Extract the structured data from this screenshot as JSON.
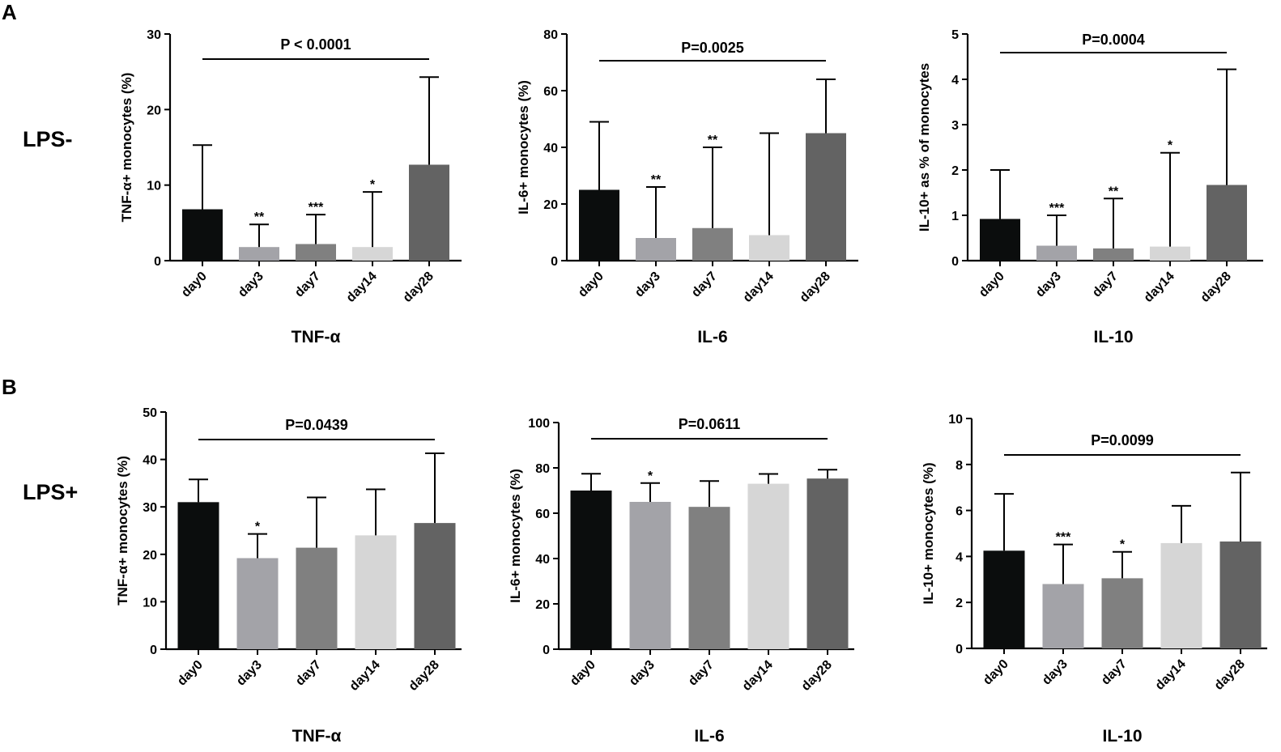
{
  "panels": {
    "A": {
      "letter": "A",
      "row_label": "LPS-"
    },
    "B": {
      "letter": "B",
      "row_label": "LPS+"
    }
  },
  "bar_colors": [
    "#0b0d0d",
    "#a3a3a8",
    "#808080",
    "#d6d6d6",
    "#636363"
  ],
  "chart_data": [
    {
      "id": "A-tnf",
      "type": "bar",
      "title": "TNF-α",
      "panel": "A",
      "ylabel": "TNF-α+ monocytes (%)",
      "categories": [
        "day0",
        "day3",
        "day7",
        "day14",
        "day28"
      ],
      "values": [
        6.8,
        1.8,
        2.2,
        1.8,
        12.7
      ],
      "error_upper": [
        15.3,
        4.8,
        6.1,
        9.1,
        24.3
      ],
      "significance": [
        "",
        "**",
        "***",
        "*",
        ""
      ],
      "ylim": [
        0,
        30
      ],
      "yticks": [
        "0",
        "10",
        "20",
        "30"
      ],
      "pvalue": "P < 0.0001"
    },
    {
      "id": "A-il6",
      "type": "bar",
      "title": "IL-6",
      "panel": "A",
      "ylabel": "IL-6+ monocytes (%)",
      "categories": [
        "day0",
        "day3",
        "day7",
        "day14",
        "day28"
      ],
      "values": [
        25,
        8,
        11.5,
        9,
        45
      ],
      "error_upper": [
        49,
        26,
        40,
        45,
        64
      ],
      "significance": [
        "",
        "**",
        "**",
        "",
        ""
      ],
      "ylim": [
        0,
        80
      ],
      "yticks": [
        "0",
        "20",
        "40",
        "60",
        "80"
      ],
      "pvalue": "P=0.0025"
    },
    {
      "id": "A-il10",
      "type": "bar",
      "title": "IL-10",
      "panel": "A",
      "ylabel": "IL-10+ as % of monocytes",
      "categories": [
        "day0",
        "day3",
        "day7",
        "day14",
        "day28"
      ],
      "values": [
        0.92,
        0.33,
        0.27,
        0.31,
        1.67
      ],
      "error_upper": [
        2.0,
        1.0,
        1.37,
        2.38,
        4.22
      ],
      "significance": [
        "",
        "***",
        "**",
        "*",
        ""
      ],
      "ylim": [
        0,
        5
      ],
      "yticks": [
        "0",
        "1",
        "2",
        "3",
        "4",
        "5"
      ],
      "pvalue": "P=0.0004"
    },
    {
      "id": "B-tnf",
      "type": "bar",
      "title": "TNF-α",
      "panel": "B",
      "ylabel": "TNF-α+ monocytes (%)",
      "categories": [
        "day0",
        "day3",
        "day7",
        "day14",
        "day28"
      ],
      "values": [
        31,
        19.2,
        21.4,
        24,
        26.6
      ],
      "error_upper": [
        35.8,
        24.3,
        32,
        33.7,
        41.3
      ],
      "significance": [
        "",
        "*",
        "",
        "",
        ""
      ],
      "ylim": [
        0,
        50
      ],
      "yticks": [
        "0",
        "10",
        "20",
        "30",
        "40",
        "50"
      ],
      "pvalue": "P=0.0439"
    },
    {
      "id": "B-il6",
      "type": "bar",
      "title": "IL-6",
      "panel": "B",
      "ylabel": "IL-6+ monocytes (%)",
      "categories": [
        "day0",
        "day3",
        "day7",
        "day14",
        "day28"
      ],
      "values": [
        70,
        65,
        62.8,
        73,
        75.3
      ],
      "error_upper": [
        77.4,
        73.3,
        74.2,
        77.3,
        79.2
      ],
      "significance": [
        "",
        "*",
        "",
        "",
        ""
      ],
      "ylim": [
        0,
        100
      ],
      "yticks": [
        "0",
        "20",
        "40",
        "60",
        "80",
        "100"
      ],
      "pvalue": "P=0.0611"
    },
    {
      "id": "B-il10",
      "type": "bar",
      "title": "IL-10",
      "panel": "B",
      "ylabel": "IL-10+ monocytes (%)",
      "categories": [
        "day0",
        "day3",
        "day7",
        "day14",
        "day28"
      ],
      "values": [
        4.25,
        2.8,
        3.05,
        4.58,
        4.65
      ],
      "error_upper": [
        6.72,
        4.52,
        4.2,
        6.2,
        7.65
      ],
      "significance": [
        "",
        "***",
        "*",
        "",
        ""
      ],
      "ylim": [
        0,
        10
      ],
      "yticks": [
        "0",
        "2",
        "4",
        "6",
        "8",
        "10"
      ],
      "pvalue": "P=0.0099"
    }
  ]
}
